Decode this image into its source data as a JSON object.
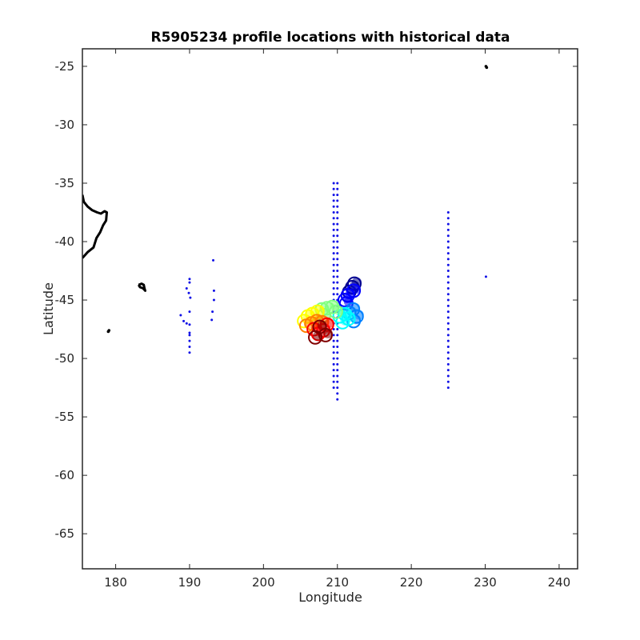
{
  "chart_data": {
    "type": "scatter",
    "title": "R5905234 profile locations with historical data",
    "xlabel": "Longitude",
    "ylabel": "Latitude",
    "xlim": [
      175.5,
      242.5
    ],
    "ylim": [
      -68,
      -23.5
    ],
    "xticks": [
      180,
      190,
      200,
      210,
      220,
      230,
      240
    ],
    "yticks": [
      -25,
      -30,
      -35,
      -40,
      -45,
      -50,
      -55,
      -60,
      -65
    ],
    "grid": false,
    "box": true,
    "colors": {
      "historical": "#1010e6",
      "coast": "#000000",
      "float_colormap": [
        "#00008f",
        "#0000ff",
        "#0080ff",
        "#00ffff",
        "#80ff80",
        "#ffff00",
        "#ff8000",
        "#ff0000",
        "#800000"
      ]
    },
    "coastline": [
      {
        "name": "North Island NZ",
        "points": [
          [
            175.5,
            -36.0
          ],
          [
            175.7,
            -36.6
          ],
          [
            176.2,
            -37.0
          ],
          [
            176.8,
            -37.3
          ],
          [
            177.5,
            -37.5
          ],
          [
            178.0,
            -37.6
          ],
          [
            178.5,
            -37.4
          ],
          [
            178.8,
            -37.5
          ],
          [
            178.7,
            -38.2
          ],
          [
            178.3,
            -38.6
          ],
          [
            177.9,
            -39.2
          ],
          [
            177.4,
            -39.7
          ],
          [
            177.0,
            -40.5
          ],
          [
            176.2,
            -40.9
          ],
          [
            175.5,
            -41.4
          ]
        ]
      },
      {
        "name": "Chatham Islands",
        "points": [
          [
            183.1,
            -43.7
          ],
          [
            183.5,
            -43.6
          ],
          [
            183.8,
            -43.7
          ],
          [
            183.9,
            -44.0
          ],
          [
            184.0,
            -44.2
          ],
          [
            183.7,
            -44.0
          ],
          [
            183.3,
            -43.9
          ],
          [
            183.1,
            -43.7
          ]
        ]
      }
    ],
    "coast_points": [
      [
        179.1,
        -47.6
      ],
      [
        179.0,
        -47.7
      ],
      [
        230.2,
        -25.1
      ],
      [
        230.1,
        -25.0
      ]
    ],
    "float_profiles": [
      {
        "x": 212.3,
        "y": -43.6
      },
      {
        "x": 212.0,
        "y": -43.9
      },
      {
        "x": 211.6,
        "y": -44.3
      },
      {
        "x": 212.2,
        "y": -44.2
      },
      {
        "x": 211.4,
        "y": -44.6
      },
      {
        "x": 211.0,
        "y": -45.0
      },
      {
        "x": 211.2,
        "y": -45.3
      },
      {
        "x": 212.1,
        "y": -45.8
      },
      {
        "x": 211.6,
        "y": -46.1
      },
      {
        "x": 212.6,
        "y": -46.4
      },
      {
        "x": 212.2,
        "y": -46.8
      },
      {
        "x": 211.5,
        "y": -46.6
      },
      {
        "x": 210.7,
        "y": -46.9
      },
      {
        "x": 211.0,
        "y": -46.2
      },
      {
        "x": 210.3,
        "y": -46.4
      },
      {
        "x": 209.8,
        "y": -46.0
      },
      {
        "x": 209.3,
        "y": -45.6
      },
      {
        "x": 208.6,
        "y": -45.7
      },
      {
        "x": 207.9,
        "y": -45.8
      },
      {
        "x": 208.2,
        "y": -46.3
      },
      {
        "x": 207.3,
        "y": -46.0
      },
      {
        "x": 206.6,
        "y": -46.2
      },
      {
        "x": 206.0,
        "y": -46.4
      },
      {
        "x": 205.5,
        "y": -46.8
      },
      {
        "x": 205.8,
        "y": -47.2
      },
      {
        "x": 206.5,
        "y": -47.0
      },
      {
        "x": 207.2,
        "y": -46.8
      },
      {
        "x": 207.9,
        "y": -46.9
      },
      {
        "x": 208.6,
        "y": -47.1
      },
      {
        "x": 208.1,
        "y": -47.6
      },
      {
        "x": 207.4,
        "y": -47.9
      },
      {
        "x": 206.8,
        "y": -47.5
      },
      {
        "x": 207.6,
        "y": -47.3
      },
      {
        "x": 208.4,
        "y": -48.0
      },
      {
        "x": 207.0,
        "y": -48.2
      }
    ],
    "historical_columns": [
      {
        "x": 209.5,
        "ys": [
          -35,
          -35.5,
          -36,
          -36.5,
          -37,
          -37.5,
          -38,
          -38.5,
          -39,
          -39.5,
          -40,
          -40.5,
          -41,
          -41.5,
          -42,
          -42.5,
          -43,
          -43.5,
          -44,
          -44.5,
          -45,
          -45.5,
          -46,
          -46.5,
          -47,
          -47.5,
          -48,
          -48.5,
          -49,
          -49.5,
          -50,
          -50.5,
          -51,
          -51.5,
          -52,
          -52.5
        ]
      },
      {
        "x": 210.0,
        "ys": [
          -35,
          -35.5,
          -36,
          -36.5,
          -37,
          -37.5,
          -38,
          -38.5,
          -39,
          -39.5,
          -40,
          -40.5,
          -41,
          -41.5,
          -42,
          -42.5,
          -43,
          -43.5,
          -44,
          -44.5,
          -45,
          -45.5,
          -46,
          -46.5,
          -47,
          -47.5,
          -48,
          -48.5,
          -49,
          -49.5,
          -50,
          -50.5,
          -51,
          -51.5,
          -52,
          -52.5,
          -53,
          -53.5
        ]
      },
      {
        "x": 225.0,
        "ys": [
          -37.5,
          -38,
          -38.5,
          -39,
          -39.5,
          -40,
          -40.5,
          -41,
          -41.5,
          -42,
          -42.5,
          -43,
          -43.5,
          -44,
          -44.5,
          -45,
          -45.5,
          -46,
          -46.5,
          -47,
          -47.5,
          -48,
          -48.5,
          -49,
          -49.5,
          -50,
          -50.5,
          -51,
          -51.5,
          -52,
          -52.5
        ]
      }
    ],
    "historical_points": [
      [
        190.0,
        -43.2
      ],
      [
        190.0,
        -43.5
      ],
      [
        189.6,
        -44.0
      ],
      [
        189.9,
        -44.4
      ],
      [
        190.1,
        -44.8
      ],
      [
        190.0,
        -46.0
      ],
      [
        188.8,
        -46.3
      ],
      [
        189.2,
        -46.8
      ],
      [
        189.6,
        -47.0
      ],
      [
        190.0,
        -47.1
      ],
      [
        190.0,
        -47.8
      ],
      [
        190.0,
        -48.0
      ],
      [
        190.0,
        -48.5
      ],
      [
        190.0,
        -49.0
      ],
      [
        190.0,
        -49.5
      ],
      [
        193.2,
        -41.6
      ],
      [
        193.3,
        -44.2
      ],
      [
        193.3,
        -45.0
      ],
      [
        193.1,
        -46.0
      ],
      [
        193.0,
        -46.7
      ],
      [
        230.1,
        -43.0
      ]
    ]
  }
}
